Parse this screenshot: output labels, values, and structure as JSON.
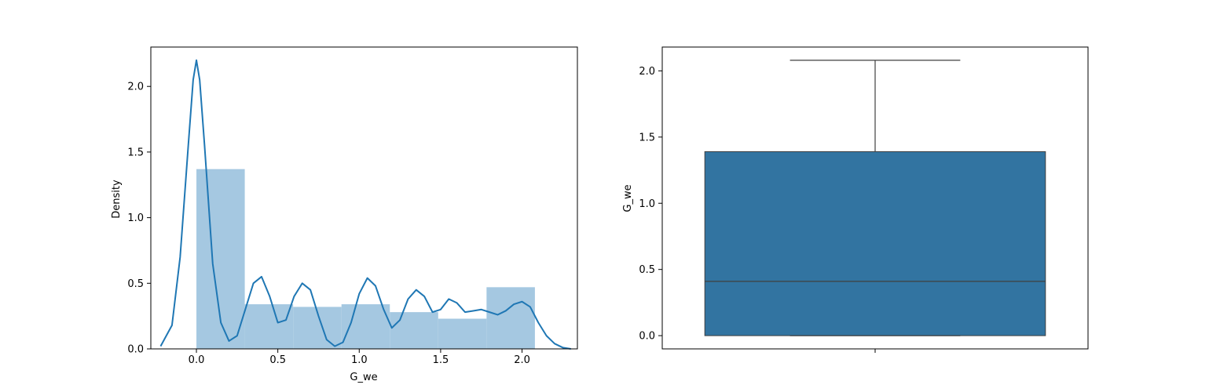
{
  "chart_data": [
    {
      "type": "bar",
      "subtype": "histogram-with-kde",
      "xlabel": "G_we",
      "ylabel": "Density",
      "xlim": [
        -0.28,
        2.34
      ],
      "ylim": [
        0,
        2.3
      ],
      "xticks": [
        "0.0",
        "0.5",
        "1.0",
        "1.5",
        "2.0"
      ],
      "yticks": [
        "0.0",
        "0.5",
        "1.0",
        "1.5",
        "2.0"
      ],
      "bin_edges": [
        0.0,
        0.297,
        0.594,
        0.891,
        1.188,
        1.485,
        1.782,
        2.079
      ],
      "values": [
        1.37,
        0.34,
        0.32,
        0.34,
        0.28,
        0.23,
        0.47
      ],
      "bar_color": "#a5c8e1",
      "kde": {
        "color": "#1f77b4",
        "x": [
          -0.22,
          -0.15,
          -0.1,
          -0.05,
          -0.02,
          0.0,
          0.02,
          0.05,
          0.1,
          0.15,
          0.2,
          0.25,
          0.3,
          0.35,
          0.4,
          0.45,
          0.5,
          0.55,
          0.6,
          0.65,
          0.7,
          0.75,
          0.8,
          0.85,
          0.9,
          0.95,
          1.0,
          1.05,
          1.1,
          1.15,
          1.2,
          1.25,
          1.3,
          1.35,
          1.4,
          1.45,
          1.5,
          1.55,
          1.6,
          1.65,
          1.7,
          1.75,
          1.8,
          1.85,
          1.9,
          1.95,
          2.0,
          2.05,
          2.1,
          2.15,
          2.2,
          2.25,
          2.3
        ],
        "y": [
          0.02,
          0.18,
          0.7,
          1.55,
          2.05,
          2.2,
          2.05,
          1.55,
          0.65,
          0.2,
          0.06,
          0.1,
          0.3,
          0.5,
          0.55,
          0.4,
          0.2,
          0.22,
          0.4,
          0.5,
          0.45,
          0.25,
          0.07,
          0.02,
          0.05,
          0.2,
          0.42,
          0.54,
          0.48,
          0.3,
          0.16,
          0.22,
          0.38,
          0.45,
          0.4,
          0.28,
          0.3,
          0.38,
          0.35,
          0.28,
          0.29,
          0.3,
          0.28,
          0.26,
          0.29,
          0.34,
          0.36,
          0.32,
          0.2,
          0.1,
          0.04,
          0.01,
          0.0
        ]
      }
    },
    {
      "type": "box",
      "ylabel": "G_we",
      "xlabel": "",
      "ylim": [
        -0.1,
        2.18
      ],
      "yticks": [
        "0.0",
        "0.5",
        "1.0",
        "1.5",
        "2.0"
      ],
      "min": 0.0,
      "q1": 0.0,
      "median": 0.41,
      "q3": 1.39,
      "max": 2.08,
      "box_color": "#3274a1",
      "line_color": "#3f3f3f"
    }
  ]
}
